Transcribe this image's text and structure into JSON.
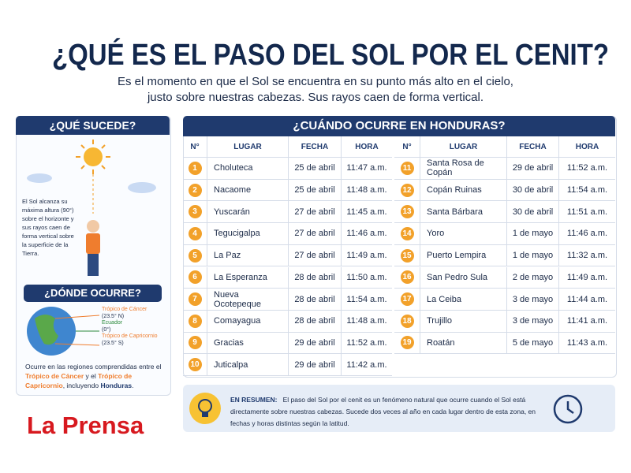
{
  "header": {
    "title": "¿QUÉ ES EL PASO DEL SOL POR EL CENIT?",
    "subtitle": [
      "Es el momento en que el Sol se encuentra en su punto más alto en el cielo,",
      "justo sobre nuestras cabezas. Sus rayos caen de forma vertical."
    ]
  },
  "what": {
    "title": "¿QUÉ SUCEDE?",
    "text": "El Sol alcanza su máxima altura (90°) sobre el horizonte y sus rayos caen de forma vertical sobre la superficie de la Tierra."
  },
  "where": {
    "title": "¿DÓNDE OCURRE?",
    "labels": [
      "Trópico de Cáncer",
      "(23.5° N)",
      "Ecuador",
      "(0°)",
      "Trópico de Capricornio",
      "(23.5° S)"
    ],
    "text": [
      "Ocurre en las regiones comprendidas entre el ",
      "Trópico de Cáncer",
      " y el ",
      "Trópico de Capricornio",
      ", incluyendo ",
      "Honduras",
      "."
    ]
  },
  "logo": "La Prensa",
  "table": {
    "title": "¿CUÁNDO OCURRE EN HONDURAS?",
    "headers": [
      "N°",
      "LUGAR",
      "FECHA",
      "HORA"
    ],
    "rows": [
      {
        "n": 1,
        "place": "Choluteca",
        "date": "25 de abril",
        "time": "11:47 a.m."
      },
      {
        "n": 2,
        "place": "Nacaome",
        "date": "25 de abril",
        "time": "11:48 a.m."
      },
      {
        "n": 3,
        "place": "Yuscarán",
        "date": "27 de abril",
        "time": "11:45 a.m."
      },
      {
        "n": 4,
        "place": "Tegucigalpa",
        "date": "27 de abril",
        "time": "11:46 a.m."
      },
      {
        "n": 5,
        "place": "La Paz",
        "date": "27 de abril",
        "time": "11:49 a.m."
      },
      {
        "n": 6,
        "place": "La Esperanza",
        "date": "28 de abril",
        "time": "11:50 a.m."
      },
      {
        "n": 7,
        "place": "Nueva Ocotepeque",
        "date": "28 de abril",
        "time": "11:54 a.m."
      },
      {
        "n": 8,
        "place": "Comayagua",
        "date": "28 de abril",
        "time": "11:48 a.m."
      },
      {
        "n": 9,
        "place": "Gracias",
        "date": "29 de abril",
        "time": "11:52 a.m."
      },
      {
        "n": 10,
        "place": "Juticalpa",
        "date": "29 de abril",
        "time": "11:42 a.m."
      },
      {
        "n": 11,
        "place": "Santa Rosa de Copán",
        "date": "29 de abril",
        "time": "11:52 a.m."
      },
      {
        "n": 12,
        "place": "Copán Ruinas",
        "date": "30 de abril",
        "time": "11:54 a.m."
      },
      {
        "n": 13,
        "place": "Santa Bárbara",
        "date": "30 de abril",
        "time": "11:51 a.m."
      },
      {
        "n": 14,
        "place": "Yoro",
        "date": "1 de mayo",
        "time": "11:46 a.m."
      },
      {
        "n": 15,
        "place": "Puerto Lempira",
        "date": "1 de mayo",
        "time": "11:32 a.m."
      },
      {
        "n": 16,
        "place": "San Pedro Sula",
        "date": "2 de mayo",
        "time": "11:49 a.m."
      },
      {
        "n": 17,
        "place": "La Ceiba",
        "date": "3 de mayo",
        "time": "11:44 a.m."
      },
      {
        "n": 18,
        "place": "Trujillo",
        "date": "3 de mayo",
        "time": "11:41 a.m."
      },
      {
        "n": 19,
        "place": "Roatán",
        "date": "5 de mayo",
        "time": "11:43 a.m."
      }
    ]
  },
  "summary": {
    "label": "EN RESUMEN:",
    "text": "El paso del Sol por el cenit es un fenómeno natural que ocurre cuando el Sol está directamente sobre nuestras cabezas. Sucede dos veces al año en cada lugar dentro de esta zona, en fechas y horas distintas según la latitud."
  }
}
